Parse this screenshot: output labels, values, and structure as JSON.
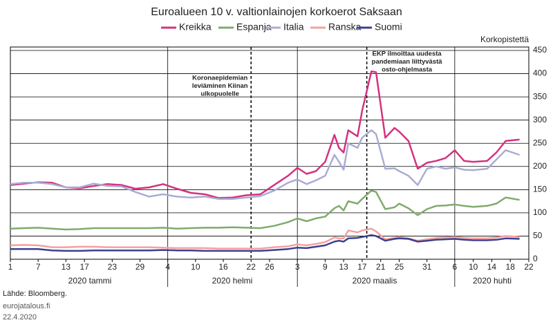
{
  "chart_data": {
    "type": "line",
    "title": "Euroalueen 10 v. valtionlainojen korkoerot Saksaan",
    "y_axis_label": "Korkopistettä",
    "source": "Lähde: Bloomberg.",
    "site": "eurojatalous.fi",
    "date": "22.4.2020",
    "x_groups": [
      "2020 tammi",
      "2020 helmi",
      "2020 maalis",
      "2020 huhti"
    ],
    "annotations": [
      {
        "x": 52,
        "lines": [
          "Koronaepidemian",
          "leviäminen Kiinan",
          "ulkopuolelle"
        ]
      },
      {
        "x": 77,
        "lines": [
          "EKP ilmoittaa uudesta",
          "pandemiaan liittyvästä",
          "osto-ohjelmasta"
        ]
      }
    ],
    "x": [
      0,
      3,
      6,
      9,
      12,
      15,
      18,
      21,
      24,
      27,
      30,
      33,
      36,
      39,
      42,
      45,
      48,
      51,
      54,
      57,
      60,
      62,
      64,
      66,
      68,
      70,
      71,
      72,
      73,
      75,
      76,
      78,
      79,
      81,
      83,
      84,
      86,
      88,
      90,
      92,
      94,
      96,
      98,
      100,
      103,
      105,
      107,
      110
    ],
    "series": [
      {
        "name": "Kreikka",
        "color": "#d4317e",
        "values": [
          160,
          163,
          166,
          165,
          155,
          153,
          158,
          162,
          160,
          152,
          155,
          162,
          152,
          143,
          140,
          132,
          133,
          138,
          140,
          160,
          180,
          197,
          184,
          190,
          210,
          268,
          240,
          230,
          278,
          265,
          320,
          405,
          403,
          262,
          283,
          275,
          255,
          195,
          208,
          212,
          218,
          235,
          212,
          210,
          212,
          230,
          255,
          258
        ]
      },
      {
        "name": "Espanja",
        "color": "#7fab6b",
        "values": [
          66,
          67,
          68,
          66,
          64,
          65,
          67,
          67,
          67,
          67,
          67,
          68,
          66,
          67,
          68,
          68,
          69,
          68,
          67,
          72,
          80,
          88,
          82,
          88,
          92,
          110,
          115,
          105,
          125,
          120,
          130,
          148,
          145,
          108,
          112,
          120,
          110,
          95,
          108,
          115,
          116,
          118,
          115,
          113,
          115,
          120,
          133,
          128
        ]
      },
      {
        "name": "Italia",
        "color": "#a9acd4",
        "values": [
          162,
          165,
          165,
          162,
          155,
          155,
          163,
          158,
          157,
          145,
          135,
          140,
          135,
          133,
          135,
          130,
          130,
          133,
          136,
          148,
          165,
          172,
          162,
          170,
          180,
          225,
          210,
          193,
          250,
          240,
          262,
          278,
          270,
          195,
          196,
          190,
          180,
          160,
          195,
          200,
          195,
          198,
          193,
          192,
          195,
          215,
          235,
          225
        ]
      },
      {
        "name": "Ranska",
        "color": "#f4a0a0",
        "values": [
          30,
          31,
          30,
          26,
          26,
          27,
          27,
          26,
          26,
          26,
          26,
          25,
          24,
          24,
          24,
          23,
          23,
          23,
          23,
          26,
          28,
          32,
          30,
          33,
          37,
          47,
          45,
          45,
          62,
          58,
          62,
          66,
          60,
          43,
          46,
          48,
          45,
          40,
          43,
          46,
          47,
          48,
          46,
          45,
          45,
          47,
          50,
          48
        ]
      },
      {
        "name": "Suomi",
        "color": "#3c3f8f",
        "values": [
          22,
          22,
          22,
          19,
          18,
          18,
          19,
          19,
          19,
          19,
          19,
          20,
          19,
          19,
          18,
          18,
          18,
          18,
          18,
          20,
          22,
          25,
          24,
          27,
          30,
          38,
          40,
          38,
          45,
          46,
          48,
          52,
          50,
          40,
          44,
          45,
          44,
          38,
          40,
          42,
          43,
          44,
          42,
          41,
          41,
          42,
          45,
          44
        ]
      }
    ],
    "xlim": [
      0,
      112
    ],
    "xticks": [
      {
        "value": 0,
        "label": "1"
      },
      {
        "value": 6,
        "label": "7"
      },
      {
        "value": 12,
        "label": "13"
      },
      {
        "value": 16,
        "label": "17"
      },
      {
        "value": 22,
        "label": "23"
      },
      {
        "value": 28,
        "label": "29"
      },
      {
        "value": 34,
        "label": "4"
      },
      {
        "value": 40,
        "label": "10"
      },
      {
        "value": 46,
        "label": "16"
      },
      {
        "value": 52,
        "label": "22"
      },
      {
        "value": 56,
        "label": "26"
      },
      {
        "value": 62,
        "label": "3"
      },
      {
        "value": 68,
        "label": "9"
      },
      {
        "value": 72,
        "label": "13"
      },
      {
        "value": 76,
        "label": "17"
      },
      {
        "value": 80,
        "label": "21"
      },
      {
        "value": 84,
        "label": "25"
      },
      {
        "value": 90,
        "label": "31"
      },
      {
        "value": 96,
        "label": "6"
      },
      {
        "value": 100,
        "label": "10"
      },
      {
        "value": 104,
        "label": "14"
      },
      {
        "value": 108,
        "label": "18"
      },
      {
        "value": 112,
        "label": "22"
      }
    ],
    "ylim": [
      0,
      450
    ],
    "yticks": [
      0,
      50,
      100,
      150,
      200,
      250,
      300,
      350,
      400,
      450
    ],
    "grid": true
  }
}
